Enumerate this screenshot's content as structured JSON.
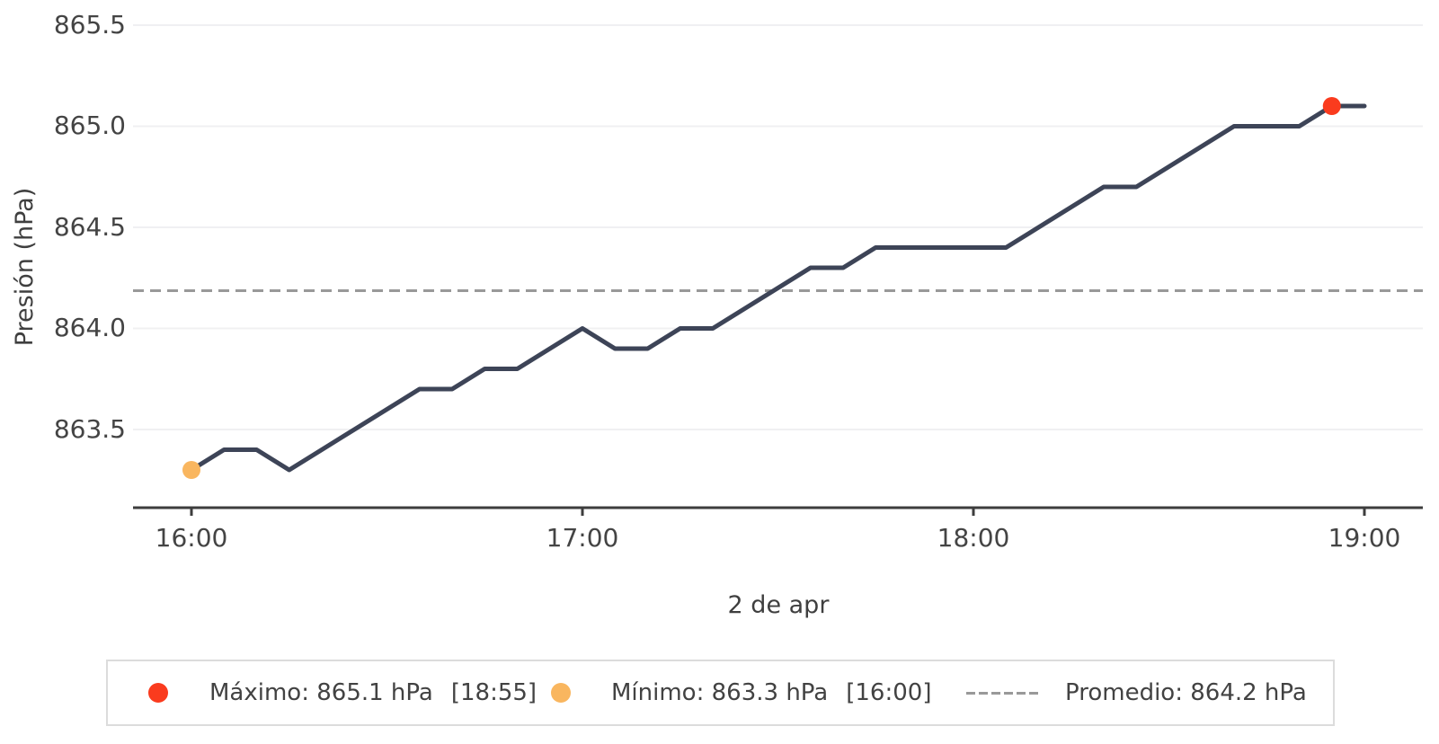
{
  "chart_data": {
    "type": "line",
    "title": "",
    "xlabel": "2 de apr",
    "ylabel": "Presión (hPa)",
    "grid": true,
    "x": [
      "16:00",
      "16:05",
      "16:10",
      "16:15",
      "16:20",
      "16:25",
      "16:30",
      "16:35",
      "16:40",
      "16:45",
      "16:50",
      "16:55",
      "17:00",
      "17:05",
      "17:10",
      "17:15",
      "17:20",
      "17:25",
      "17:30",
      "17:35",
      "17:40",
      "17:45",
      "17:50",
      "17:55",
      "18:00",
      "18:05",
      "18:10",
      "18:15",
      "18:20",
      "18:25",
      "18:30",
      "18:35",
      "18:40",
      "18:45",
      "18:50",
      "18:55",
      "19:00"
    ],
    "values": [
      863.3,
      863.4,
      863.4,
      863.3,
      863.4,
      863.5,
      863.6,
      863.7,
      863.7,
      863.8,
      863.8,
      863.9,
      864.0,
      863.9,
      863.9,
      864.0,
      864.0,
      864.1,
      864.2,
      864.3,
      864.3,
      864.4,
      864.4,
      864.4,
      864.4,
      864.4,
      864.5,
      864.6,
      864.7,
      864.7,
      864.8,
      864.9,
      865.0,
      865.0,
      865.0,
      865.1,
      865.1
    ],
    "step_minutes": 5,
    "ytick_labels": [
      "863.5",
      "864.0",
      "864.5",
      "865.0",
      "865.5"
    ],
    "ytick_values": [
      863.5,
      864.0,
      864.5,
      865.0,
      865.5
    ],
    "xtick_labels": [
      "16:00",
      "17:00",
      "18:00",
      "19:00"
    ],
    "xtick_minutes": [
      0,
      60,
      120,
      180
    ],
    "ylim": [
      863.11,
      865.62
    ],
    "xlim_minutes": [
      -9,
      189
    ],
    "legend_position": "bottom",
    "annotations": {
      "max": {
        "value": 865.1,
        "unit": "hPa",
        "time": "18:55"
      },
      "min": {
        "value": 863.3,
        "unit": "hPa",
        "time": "16:00"
      },
      "avg": {
        "value": 864.2,
        "unit": "hPa"
      }
    }
  },
  "colors": {
    "line": "#3d4457",
    "max_dot": "#fa3b1e",
    "min_dot": "#f9b65f",
    "avg_line": "#999999",
    "grid": "#f0f0f2",
    "axis": "#3d3d3d",
    "text": "#444444",
    "legend_border": "#dcdcdc"
  },
  "axes": {
    "ylabel": "Presión (hPa)",
    "xlabel": "2 de apr"
  },
  "legend": {
    "max_label": "Máximo: 865.1 hPa",
    "max_time": "[18:55]",
    "min_label": "Mínimo: 863.3 hPa",
    "min_time": "[16:00]",
    "avg_label": "Promedio: 864.2 hPa"
  }
}
